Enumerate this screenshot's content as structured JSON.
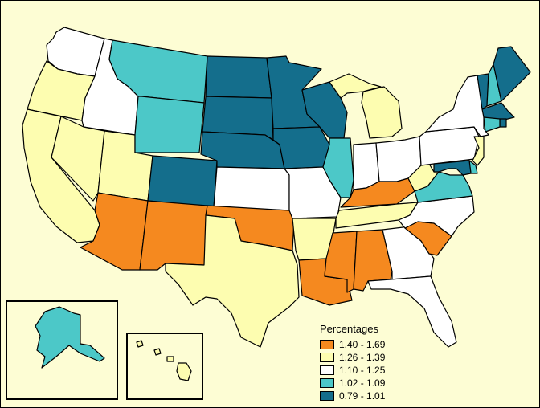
{
  "colors": {
    "background": "#fdfdd4",
    "c1": "#f5891f",
    "c2": "#fdfdb0",
    "c3": "#ffffff",
    "c4": "#4cc8c8",
    "c5": "#146e8c"
  },
  "legend": {
    "title": "Percentages",
    "items": [
      {
        "label": "1.40 - 1.69",
        "color": "#f5891f"
      },
      {
        "label": "1.26 - 1.39",
        "color": "#fdfdb0"
      },
      {
        "label": "1.10 - 1.25",
        "color": "#ffffff"
      },
      {
        "label": "1.02 - 1.09",
        "color": "#4cc8c8"
      },
      {
        "label": "0.79 - 1.01",
        "color": "#146e8c"
      }
    ]
  },
  "states": {
    "WA": "c3",
    "OR": "c2",
    "CA": "c2",
    "ID": "c3",
    "NV": "c2",
    "UT": "c2",
    "AZ": "c1",
    "MT": "c4",
    "WY": "c4",
    "CO": "c5",
    "NM": "c1",
    "ND": "c5",
    "SD": "c5",
    "NE": "c5",
    "KS": "c3",
    "OK": "c1",
    "TX": "c2",
    "MN": "c5",
    "IA": "c5",
    "MO": "c3",
    "AR": "c2",
    "LA": "c1",
    "WI": "c5",
    "IL": "c4",
    "MI": "c2",
    "IN": "c3",
    "OH": "c3",
    "KY": "c1",
    "TN": "c2",
    "MS": "c1",
    "AL": "c1",
    "GA": "c3",
    "FL": "c3",
    "SC": "c1",
    "NC": "c3",
    "VA": "c4",
    "WV": "c2",
    "PA": "c3",
    "NY": "c3",
    "VT": "c5",
    "NH": "c4",
    "ME": "c5",
    "MA": "c5",
    "CT": "c4",
    "RI": "c5",
    "NJ": "c2",
    "DE": "c4",
    "MD": "c5",
    "AK": "c4",
    "HI": "c2"
  }
}
